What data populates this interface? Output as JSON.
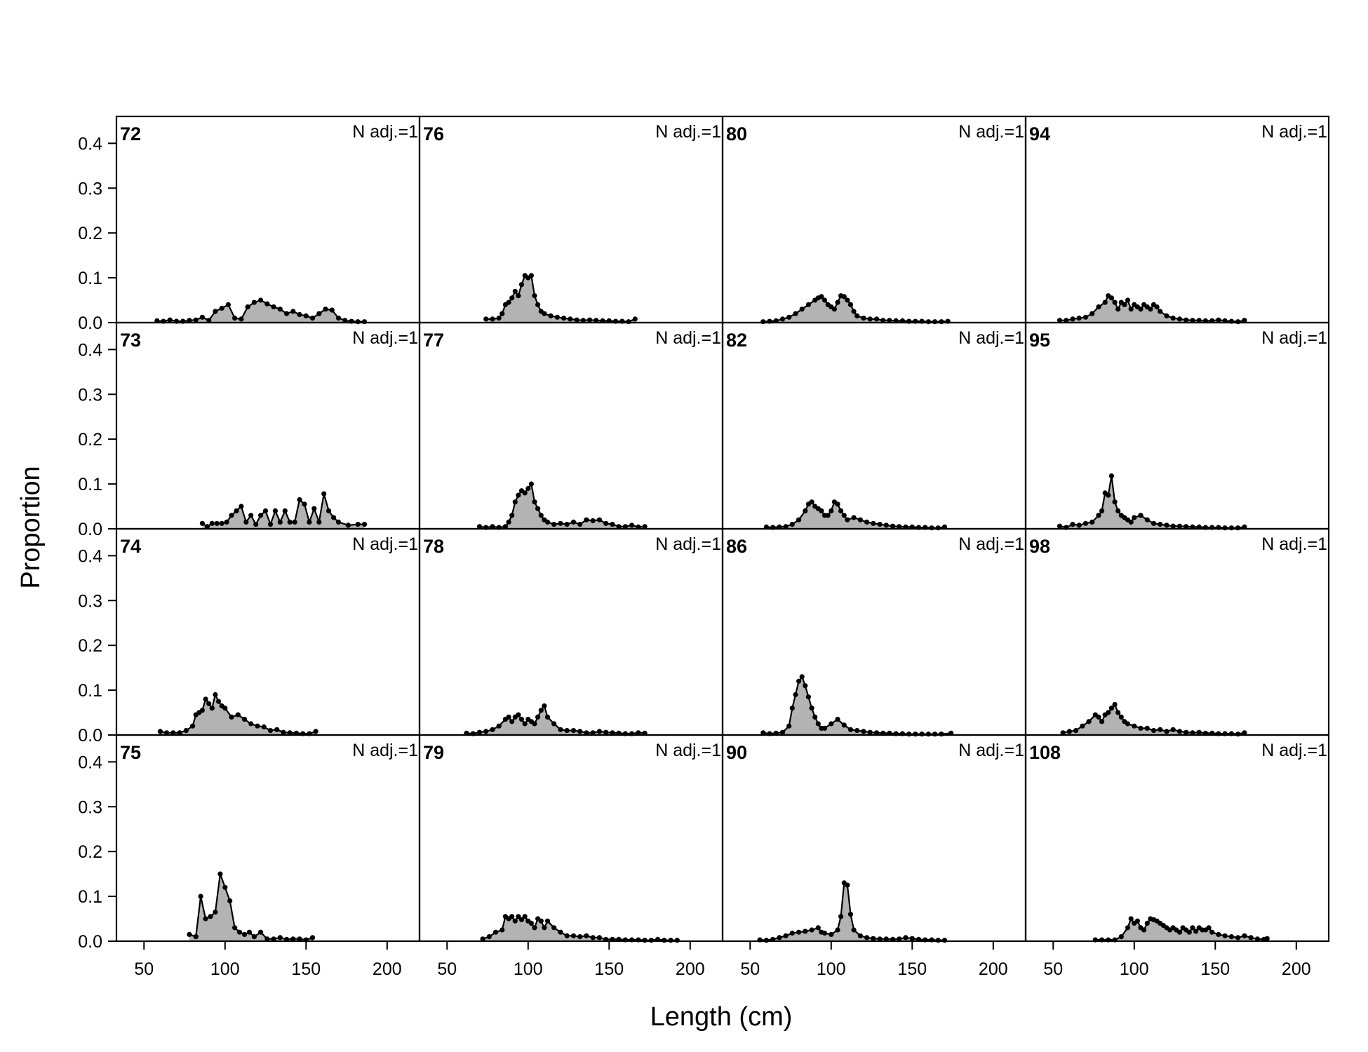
{
  "chart_data": {
    "type": "area",
    "layout": "4x4 panel grid, columns filled top-to-bottom",
    "xlabel": "Length (cm)",
    "ylabel": "Proportion",
    "xlim": [
      33,
      220
    ],
    "ylim": [
      0,
      0.46
    ],
    "x_ticks": [
      50,
      100,
      150,
      200
    ],
    "y_ticks": [
      0.0,
      0.1,
      0.2,
      0.3,
      0.4
    ],
    "y_tick_labels": [
      "0.0",
      "0.1",
      "0.2",
      "0.3",
      "0.4"
    ],
    "n_label": "N adj.=1",
    "fill_color": "#b3b3b3",
    "line_color": "#000000",
    "panels": [
      {
        "title": "72",
        "x": [
          58,
          62,
          66,
          70,
          74,
          78,
          82,
          86,
          90,
          94,
          98,
          102,
          106,
          110,
          114,
          118,
          122,
          126,
          130,
          134,
          138,
          142,
          146,
          150,
          154,
          158,
          162,
          166,
          170,
          174,
          178,
          182,
          186
        ],
        "y": [
          0.004,
          0.003,
          0.006,
          0.003,
          0.003,
          0.005,
          0.006,
          0.012,
          0.005,
          0.025,
          0.032,
          0.04,
          0.01,
          0.008,
          0.035,
          0.045,
          0.05,
          0.042,
          0.035,
          0.03,
          0.02,
          0.025,
          0.018,
          0.015,
          0.01,
          0.02,
          0.03,
          0.028,
          0.01,
          0.005,
          0.003,
          0.002,
          0.002
        ]
      },
      {
        "title": "73",
        "x": [
          86,
          89,
          92,
          95,
          98,
          101,
          104,
          107,
          110,
          113,
          116,
          119,
          122,
          125,
          128,
          131,
          134,
          137,
          140,
          143,
          146,
          149,
          152,
          155,
          158,
          161,
          164,
          167,
          170,
          176,
          182,
          186
        ],
        "y": [
          0.012,
          0.005,
          0.012,
          0.012,
          0.012,
          0.015,
          0.03,
          0.04,
          0.05,
          0.015,
          0.03,
          0.01,
          0.03,
          0.04,
          0.01,
          0.04,
          0.015,
          0.04,
          0.015,
          0.015,
          0.065,
          0.055,
          0.015,
          0.045,
          0.015,
          0.078,
          0.04,
          0.025,
          0.015,
          0.008,
          0.01,
          0.01
        ]
      },
      {
        "title": "74",
        "x": [
          60,
          64,
          68,
          72,
          76,
          80,
          82,
          84,
          86,
          88,
          90,
          92,
          94,
          96,
          98,
          100,
          104,
          108,
          112,
          116,
          120,
          124,
          128,
          132,
          136,
          140,
          144,
          148,
          152,
          156
        ],
        "y": [
          0.008,
          0.005,
          0.005,
          0.005,
          0.01,
          0.02,
          0.045,
          0.05,
          0.055,
          0.08,
          0.07,
          0.06,
          0.09,
          0.075,
          0.065,
          0.06,
          0.04,
          0.045,
          0.035,
          0.025,
          0.02,
          0.018,
          0.01,
          0.012,
          0.006,
          0.005,
          0.004,
          0.003,
          0.003,
          0.008
        ]
      },
      {
        "title": "75",
        "x": [
          78,
          82,
          85,
          88,
          91,
          94,
          97,
          100,
          103,
          106,
          109,
          112,
          115,
          118,
          122,
          126,
          130,
          134,
          138,
          142,
          146,
          150,
          154
        ],
        "y": [
          0.015,
          0.01,
          0.1,
          0.05,
          0.055,
          0.065,
          0.15,
          0.12,
          0.09,
          0.03,
          0.02,
          0.015,
          0.02,
          0.01,
          0.02,
          0.005,
          0.005,
          0.008,
          0.004,
          0.005,
          0.005,
          0.003,
          0.008
        ]
      },
      {
        "title": "76",
        "x": [
          74,
          78,
          82,
          84,
          86,
          88,
          90,
          92,
          94,
          96,
          98,
          100,
          102,
          104,
          106,
          108,
          110,
          114,
          118,
          122,
          126,
          130,
          134,
          138,
          142,
          146,
          150,
          154,
          158,
          162,
          166
        ],
        "y": [
          0.008,
          0.008,
          0.01,
          0.02,
          0.04,
          0.045,
          0.055,
          0.07,
          0.06,
          0.085,
          0.105,
          0.1,
          0.105,
          0.06,
          0.04,
          0.025,
          0.02,
          0.015,
          0.012,
          0.01,
          0.008,
          0.006,
          0.005,
          0.006,
          0.005,
          0.004,
          0.004,
          0.003,
          0.003,
          0.002,
          0.008
        ]
      },
      {
        "title": "77",
        "x": [
          70,
          74,
          78,
          82,
          86,
          88,
          90,
          92,
          94,
          96,
          98,
          100,
          102,
          104,
          106,
          108,
          110,
          112,
          116,
          120,
          124,
          128,
          132,
          136,
          140,
          144,
          148,
          152,
          156,
          160,
          164,
          168,
          172
        ],
        "y": [
          0.005,
          0.003,
          0.005,
          0.003,
          0.005,
          0.015,
          0.03,
          0.06,
          0.075,
          0.085,
          0.08,
          0.09,
          0.1,
          0.06,
          0.045,
          0.03,
          0.02,
          0.015,
          0.01,
          0.012,
          0.01,
          0.015,
          0.01,
          0.02,
          0.018,
          0.02,
          0.012,
          0.01,
          0.005,
          0.005,
          0.008,
          0.004,
          0.005
        ]
      },
      {
        "title": "78",
        "x": [
          62,
          66,
          70,
          74,
          78,
          82,
          86,
          88,
          90,
          92,
          94,
          96,
          98,
          100,
          102,
          104,
          106,
          108,
          110,
          112,
          116,
          120,
          124,
          128,
          132,
          136,
          140,
          144,
          148,
          152,
          156,
          160,
          164,
          168,
          172
        ],
        "y": [
          0.004,
          0.003,
          0.006,
          0.008,
          0.012,
          0.02,
          0.035,
          0.04,
          0.03,
          0.04,
          0.045,
          0.035,
          0.025,
          0.035,
          0.03,
          0.025,
          0.04,
          0.055,
          0.065,
          0.04,
          0.025,
          0.012,
          0.01,
          0.01,
          0.008,
          0.005,
          0.005,
          0.008,
          0.006,
          0.005,
          0.004,
          0.003,
          0.003,
          0.005,
          0.004
        ]
      },
      {
        "title": "79",
        "x": [
          72,
          76,
          80,
          84,
          86,
          88,
          90,
          92,
          94,
          96,
          98,
          100,
          102,
          104,
          106,
          108,
          110,
          112,
          116,
          120,
          124,
          128,
          132,
          136,
          140,
          144,
          148,
          152,
          156,
          160,
          164,
          168,
          172,
          176,
          180,
          184,
          188,
          192
        ],
        "y": [
          0.005,
          0.01,
          0.02,
          0.025,
          0.055,
          0.05,
          0.055,
          0.045,
          0.055,
          0.048,
          0.055,
          0.045,
          0.04,
          0.03,
          0.05,
          0.045,
          0.03,
          0.045,
          0.03,
          0.02,
          0.012,
          0.012,
          0.01,
          0.012,
          0.008,
          0.008,
          0.004,
          0.004,
          0.004,
          0.003,
          0.003,
          0.003,
          0.002,
          0.002,
          0.004,
          0.002,
          0.002,
          0.002
        ]
      },
      {
        "title": "80",
        "x": [
          58,
          62,
          66,
          70,
          74,
          78,
          82,
          86,
          90,
          92,
          94,
          96,
          98,
          100,
          102,
          104,
          106,
          108,
          110,
          112,
          114,
          116,
          120,
          124,
          128,
          132,
          136,
          140,
          144,
          148,
          152,
          156,
          160,
          164,
          168,
          172
        ],
        "y": [
          0.002,
          0.003,
          0.004,
          0.008,
          0.012,
          0.02,
          0.03,
          0.04,
          0.05,
          0.055,
          0.058,
          0.05,
          0.04,
          0.035,
          0.03,
          0.045,
          0.06,
          0.058,
          0.05,
          0.04,
          0.025,
          0.015,
          0.01,
          0.008,
          0.008,
          0.005,
          0.005,
          0.004,
          0.004,
          0.003,
          0.003,
          0.003,
          0.002,
          0.002,
          0.002,
          0.003
        ]
      },
      {
        "title": "82",
        "x": [
          60,
          64,
          68,
          72,
          76,
          80,
          84,
          86,
          88,
          90,
          92,
          94,
          96,
          98,
          100,
          102,
          104,
          106,
          108,
          110,
          114,
          118,
          122,
          126,
          130,
          134,
          138,
          142,
          146,
          150,
          154,
          158,
          162,
          166,
          170
        ],
        "y": [
          0.004,
          0.003,
          0.004,
          0.005,
          0.01,
          0.02,
          0.04,
          0.055,
          0.06,
          0.05,
          0.045,
          0.04,
          0.03,
          0.03,
          0.04,
          0.06,
          0.055,
          0.04,
          0.03,
          0.02,
          0.025,
          0.02,
          0.015,
          0.012,
          0.01,
          0.008,
          0.006,
          0.005,
          0.004,
          0.004,
          0.003,
          0.003,
          0.002,
          0.002,
          0.004
        ]
      },
      {
        "title": "86",
        "x": [
          58,
          62,
          66,
          70,
          74,
          76,
          78,
          80,
          82,
          84,
          86,
          88,
          90,
          92,
          94,
          96,
          100,
          104,
          108,
          112,
          116,
          120,
          124,
          128,
          132,
          136,
          140,
          144,
          148,
          152,
          156,
          160,
          164,
          168,
          174
        ],
        "y": [
          0.005,
          0.003,
          0.004,
          0.006,
          0.02,
          0.06,
          0.09,
          0.12,
          0.13,
          0.11,
          0.085,
          0.06,
          0.04,
          0.025,
          0.015,
          0.015,
          0.025,
          0.035,
          0.022,
          0.012,
          0.01,
          0.008,
          0.006,
          0.005,
          0.004,
          0.004,
          0.003,
          0.003,
          0.002,
          0.002,
          0.002,
          0.002,
          0.002,
          0.002,
          0.004
        ]
      },
      {
        "title": "90",
        "x": [
          56,
          60,
          64,
          68,
          72,
          76,
          80,
          84,
          88,
          92,
          94,
          96,
          100,
          104,
          106,
          108,
          110,
          112,
          114,
          118,
          122,
          126,
          130,
          134,
          138,
          142,
          146,
          150,
          154,
          158,
          162,
          166,
          170
        ],
        "y": [
          0.003,
          0.002,
          0.004,
          0.008,
          0.012,
          0.018,
          0.02,
          0.022,
          0.025,
          0.03,
          0.02,
          0.018,
          0.015,
          0.025,
          0.055,
          0.13,
          0.125,
          0.06,
          0.025,
          0.012,
          0.008,
          0.006,
          0.005,
          0.005,
          0.004,
          0.005,
          0.008,
          0.006,
          0.004,
          0.003,
          0.003,
          0.002,
          0.002
        ]
      },
      {
        "title": "94",
        "x": [
          54,
          58,
          62,
          66,
          70,
          74,
          78,
          82,
          84,
          86,
          88,
          90,
          92,
          94,
          96,
          98,
          100,
          102,
          104,
          106,
          108,
          110,
          112,
          114,
          116,
          120,
          124,
          128,
          132,
          136,
          140,
          144,
          148,
          152,
          156,
          160,
          164,
          168
        ],
        "y": [
          0.005,
          0.005,
          0.008,
          0.01,
          0.012,
          0.02,
          0.035,
          0.045,
          0.06,
          0.055,
          0.045,
          0.03,
          0.045,
          0.04,
          0.05,
          0.03,
          0.04,
          0.035,
          0.03,
          0.04,
          0.035,
          0.03,
          0.04,
          0.035,
          0.025,
          0.015,
          0.01,
          0.008,
          0.006,
          0.005,
          0.005,
          0.004,
          0.004,
          0.006,
          0.004,
          0.003,
          0.002,
          0.005
        ]
      },
      {
        "title": "95",
        "x": [
          54,
          58,
          62,
          66,
          70,
          74,
          78,
          80,
          82,
          84,
          86,
          88,
          90,
          92,
          94,
          96,
          98,
          100,
          104,
          108,
          112,
          116,
          120,
          124,
          128,
          132,
          136,
          140,
          144,
          148,
          152,
          156,
          160,
          164,
          168
        ],
        "y": [
          0.006,
          0.003,
          0.01,
          0.008,
          0.012,
          0.015,
          0.03,
          0.04,
          0.08,
          0.075,
          0.118,
          0.06,
          0.04,
          0.03,
          0.025,
          0.02,
          0.015,
          0.025,
          0.03,
          0.02,
          0.012,
          0.01,
          0.008,
          0.006,
          0.006,
          0.005,
          0.004,
          0.004,
          0.003,
          0.003,
          0.003,
          0.002,
          0.002,
          0.002,
          0.004
        ]
      },
      {
        "title": "98",
        "x": [
          56,
          60,
          64,
          68,
          72,
          76,
          78,
          80,
          82,
          84,
          86,
          88,
          90,
          92,
          94,
          96,
          100,
          104,
          108,
          112,
          116,
          120,
          124,
          128,
          132,
          136,
          140,
          144,
          148,
          152,
          156,
          160,
          164,
          168
        ],
        "y": [
          0.005,
          0.008,
          0.01,
          0.02,
          0.03,
          0.045,
          0.04,
          0.03,
          0.045,
          0.05,
          0.06,
          0.068,
          0.05,
          0.04,
          0.03,
          0.025,
          0.02,
          0.015,
          0.015,
          0.01,
          0.012,
          0.008,
          0.012,
          0.008,
          0.006,
          0.005,
          0.006,
          0.004,
          0.004,
          0.003,
          0.003,
          0.003,
          0.002,
          0.005
        ]
      },
      {
        "title": "108",
        "x": [
          76,
          80,
          84,
          88,
          92,
          96,
          98,
          100,
          102,
          104,
          106,
          108,
          110,
          112,
          114,
          116,
          118,
          120,
          122,
          124,
          126,
          128,
          130,
          132,
          134,
          136,
          138,
          140,
          142,
          144,
          146,
          148,
          152,
          156,
          160,
          164,
          168,
          172,
          176,
          180,
          182
        ],
        "y": [
          0.003,
          0.003,
          0.003,
          0.003,
          0.01,
          0.03,
          0.05,
          0.04,
          0.045,
          0.03,
          0.025,
          0.04,
          0.05,
          0.048,
          0.045,
          0.04,
          0.035,
          0.03,
          0.025,
          0.03,
          0.025,
          0.02,
          0.03,
          0.025,
          0.02,
          0.03,
          0.022,
          0.03,
          0.025,
          0.025,
          0.03,
          0.02,
          0.015,
          0.012,
          0.01,
          0.008,
          0.012,
          0.008,
          0.005,
          0.004,
          0.006
        ]
      }
    ]
  }
}
